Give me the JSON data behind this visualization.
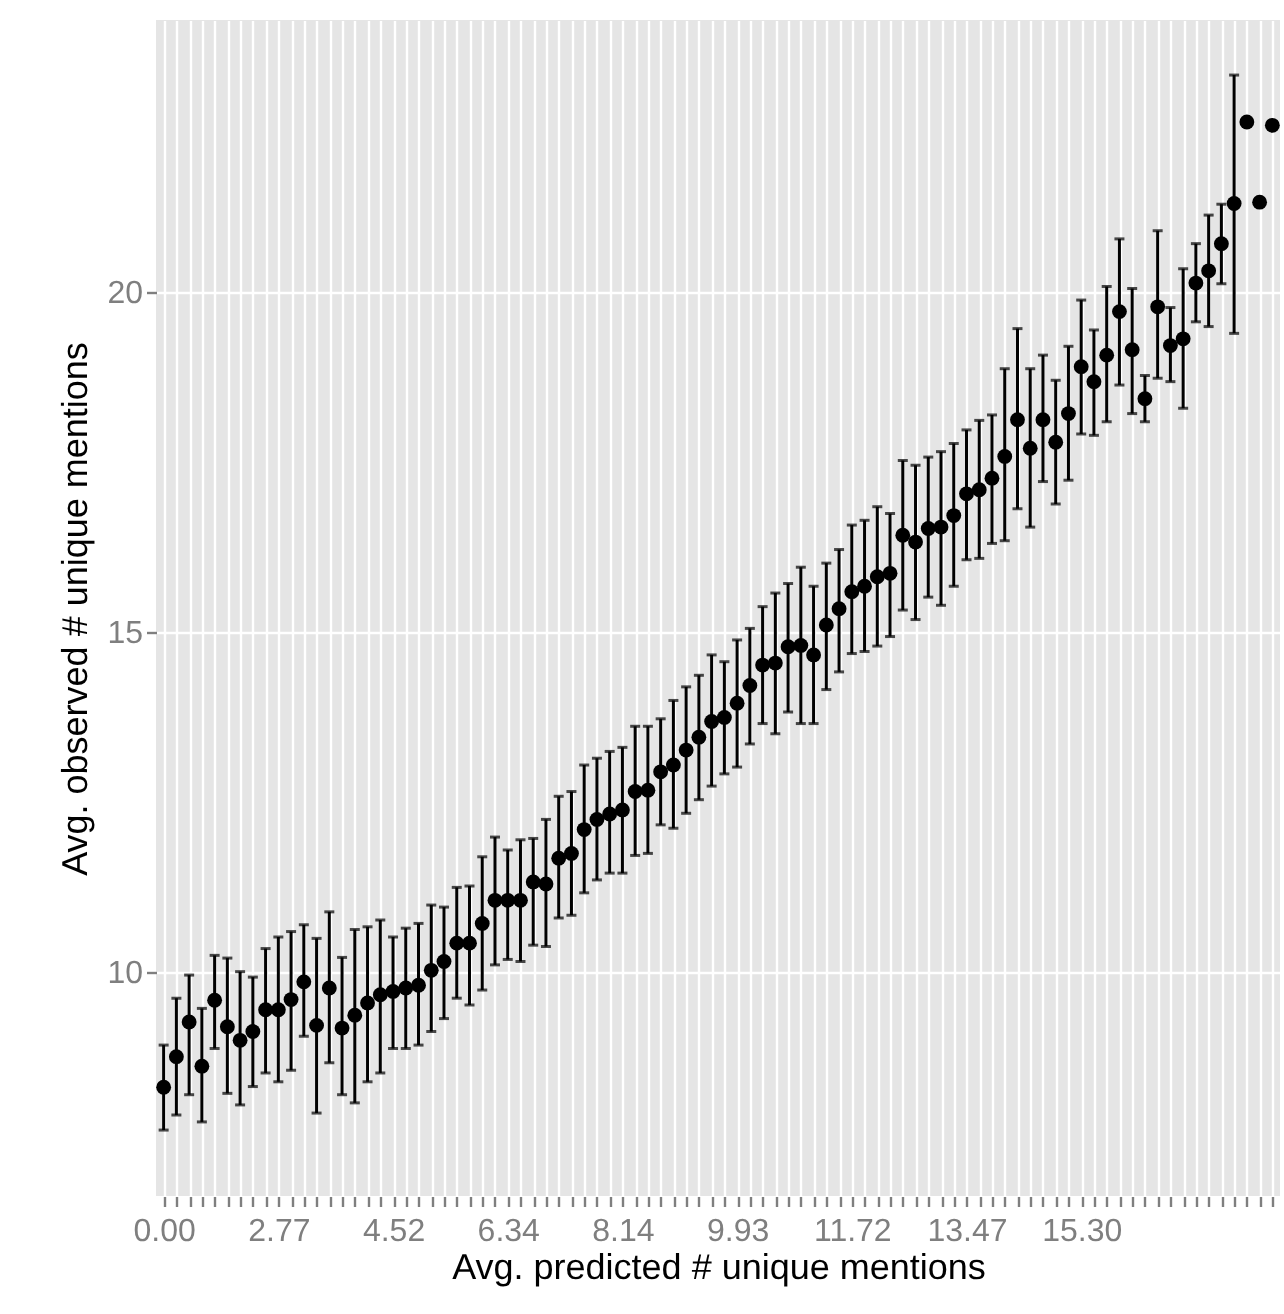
{
  "chart_data": {
    "type": "scatter",
    "xlabel": "Avg. predicted # unique mentions",
    "ylabel": "Avg. observed # unique mentions",
    "categories": [
      "0.00",
      null,
      null,
      null,
      null,
      null,
      null,
      null,
      null,
      "2.77",
      null,
      null,
      null,
      null,
      null,
      null,
      null,
      null,
      "4.52",
      null,
      null,
      null,
      null,
      null,
      null,
      null,
      null,
      "6.34",
      null,
      null,
      null,
      null,
      null,
      null,
      null,
      null,
      "8.14",
      null,
      null,
      null,
      null,
      null,
      null,
      null,
      null,
      "9.93",
      null,
      null,
      null,
      null,
      null,
      null,
      null,
      null,
      "11.72",
      null,
      null,
      null,
      null,
      null,
      null,
      null,
      null,
      "13.47",
      null,
      null,
      null,
      null,
      null,
      null,
      null,
      null,
      "15.30",
      null,
      null,
      null,
      null,
      null,
      null,
      null,
      null,
      null,
      null,
      null,
      null,
      null,
      null,
      null
    ],
    "values": [
      8.3,
      8.75,
      9.26,
      8.61,
      9.58,
      9.19,
      8.99,
      9.12,
      9.44,
      9.44,
      9.59,
      9.85,
      9.21,
      9.76,
      9.17,
      9.36,
      9.54,
      9.66,
      9.71,
      9.76,
      9.8,
      10.02,
      10.15,
      10.42,
      10.42,
      10.71,
      11.05,
      11.05,
      11.05,
      11.32,
      11.29,
      11.67,
      11.74,
      12.09,
      12.24,
      12.32,
      12.38,
      12.65,
      12.67,
      12.94,
      13.04,
      13.26,
      13.45,
      13.68,
      13.74,
      13.95,
      14.21,
      14.51,
      14.54,
      14.78,
      14.8,
      14.66,
      15.1,
      15.34,
      15.59,
      15.67,
      15.81,
      15.86,
      16.42,
      16.32,
      16.52,
      16.54,
      16.71,
      17.03,
      17.09,
      17.26,
      17.58,
      18.12,
      17.7,
      18.12,
      17.79,
      18.21,
      18.9,
      18.68,
      19.07,
      19.71,
      19.15,
      18.43,
      19.78,
      19.21,
      19.31,
      20.13,
      20.31,
      20.71,
      21.3,
      22.5,
      21.32,
      22.45
    ],
    "errors": [
      [
        7.67,
        8.92
      ],
      [
        7.89,
        9.61
      ],
      [
        8.19,
        9.95
      ],
      [
        7.79,
        9.46
      ],
      [
        8.87,
        10.24
      ],
      [
        8.21,
        10.2
      ],
      [
        8.04,
        10.0
      ],
      [
        8.31,
        9.92
      ],
      [
        8.51,
        10.34
      ],
      [
        8.38,
        10.51
      ],
      [
        8.55,
        10.59
      ],
      [
        9.05,
        10.69
      ],
      [
        7.92,
        10.49
      ],
      [
        8.66,
        10.88
      ],
      [
        8.19,
        10.21
      ],
      [
        8.07,
        10.62
      ],
      [
        8.38,
        10.66
      ],
      [
        8.51,
        10.76
      ],
      [
        8.87,
        10.51
      ],
      [
        8.87,
        10.64
      ],
      [
        8.92,
        10.71
      ],
      [
        9.12,
        10.98
      ],
      [
        9.31,
        10.95
      ],
      [
        9.61,
        11.24
      ],
      [
        9.51,
        11.26
      ],
      [
        9.73,
        11.69
      ],
      [
        10.1,
        11.98
      ],
      [
        10.18,
        11.79
      ],
      [
        10.15,
        11.94
      ],
      [
        10.39,
        11.96
      ],
      [
        10.37,
        12.24
      ],
      [
        10.79,
        12.58
      ],
      [
        10.83,
        12.65
      ],
      [
        11.16,
        13.04
      ],
      [
        11.35,
        13.14
      ],
      [
        11.45,
        13.24
      ],
      [
        11.45,
        13.3
      ],
      [
        11.71,
        13.61
      ],
      [
        11.74,
        13.61
      ],
      [
        12.16,
        13.72
      ],
      [
        12.11,
        13.99
      ],
      [
        12.33,
        14.19
      ],
      [
        12.53,
        14.36
      ],
      [
        12.73,
        14.66
      ],
      [
        12.91,
        14.56
      ],
      [
        13.01,
        14.88
      ],
      [
        13.35,
        15.05
      ],
      [
        13.65,
        15.37
      ],
      [
        13.5,
        15.57
      ],
      [
        13.82,
        15.71
      ],
      [
        13.65,
        15.95
      ],
      [
        13.65,
        15.67
      ],
      [
        14.15,
        16.01
      ],
      [
        14.41,
        16.21
      ],
      [
        14.68,
        16.57
      ],
      [
        14.71,
        16.64
      ],
      [
        14.79,
        16.84
      ],
      [
        14.93,
        16.74
      ],
      [
        15.32,
        17.52
      ],
      [
        15.18,
        17.45
      ],
      [
        15.51,
        17.57
      ],
      [
        15.39,
        17.65
      ],
      [
        15.67,
        17.77
      ],
      [
        16.06,
        17.97
      ],
      [
        16.08,
        18.11
      ],
      [
        16.3,
        18.19
      ],
      [
        16.34,
        18.87
      ],
      [
        16.81,
        19.46
      ],
      [
        16.54,
        18.87
      ],
      [
        17.21,
        19.07
      ],
      [
        16.88,
        18.7
      ],
      [
        17.23,
        19.2
      ],
      [
        17.91,
        19.88
      ],
      [
        17.89,
        19.44
      ],
      [
        18.09,
        20.08
      ],
      [
        18.63,
        20.78
      ],
      [
        18.21,
        20.05
      ],
      [
        18.09,
        18.77
      ],
      [
        18.73,
        20.9
      ],
      [
        18.68,
        19.77
      ],
      [
        18.29,
        20.34
      ],
      [
        19.56,
        20.71
      ],
      [
        19.49,
        21.13
      ],
      [
        20.12,
        21.29
      ],
      [
        19.39,
        23.19
      ],
      null,
      null,
      null
    ],
    "color": "#000000",
    "ylim": [
      6.7,
      24
    ],
    "yticks": [
      10,
      15,
      20
    ],
    "grid": true,
    "marker": "circle"
  }
}
